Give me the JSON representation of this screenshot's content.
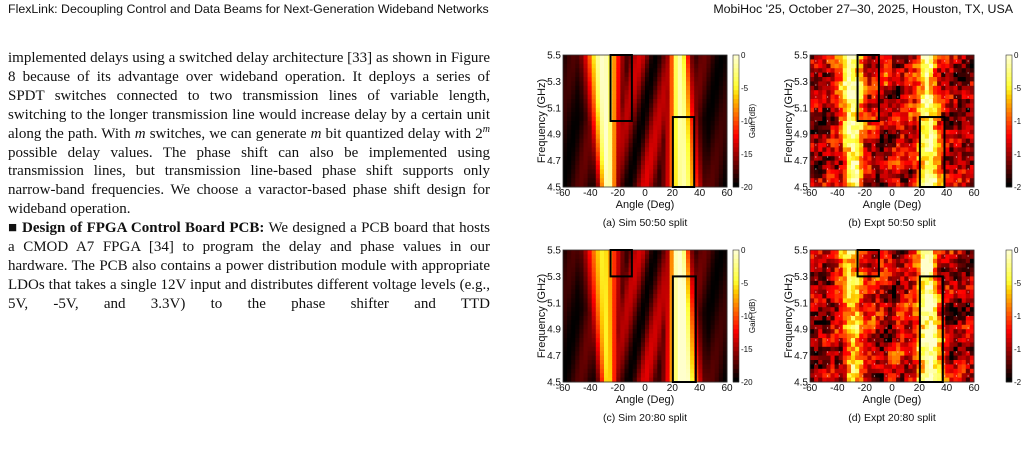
{
  "header": {
    "left": "FlexLink: Decoupling Control and Data Beams for Next-Generation Wideband Networks",
    "right": "MobiHoc '25, October 27–30, 2025, Houston, TX, USA"
  },
  "body": {
    "paragraph1": [
      "implemented delays using a switched delay architecture [33] as shown in Figure 8 because of its advantage over wideband operation. It deploys a series of SPDT switches connected to two transmission lines of variable length, switching to the longer transmission line would increase delay by a certain unit along the path. With ",
      "m",
      " switches, we can generate ",
      "m",
      " bit quantized delay with 2",
      "m",
      " possible delay values. The phase shift can also be implemented using transmission lines, but transmission line-based phase shift supports only narrow-band frequencies. We choose a varactor-based phase shift design for wideband operation."
    ],
    "paragraph2": {
      "marker": "■",
      "heading": "Design of FPGA Control Board PCB:",
      "text": "We designed a PCB board that hosts a CMOD A7 FPGA [34] to program the delay and phase values in our hardware. The PCB also contains a power distribution module with appropriate LDOs that takes a single 12V input and distributes different voltage levels (e.g., 5V, -5V, and 3.3V) to the phase shifter and TTD"
    }
  },
  "figure": {
    "x_label": "Angle (Deg)",
    "y_label": "Frequency (GHz)",
    "colorbar_label": "Gain (dB)",
    "x_ticks": [
      "-60",
      "-40",
      "-20",
      "0",
      "20",
      "40",
      "60"
    ],
    "y_ticks": [
      "5.5",
      "5.3",
      "5.1",
      "4.9",
      "4.7",
      "4.5"
    ],
    "colorbar_ticks": [
      "0",
      "-5",
      "-10",
      "-15",
      "-20"
    ],
    "panels": [
      {
        "caption": "(a) Sim 50:50 split"
      },
      {
        "caption": "(b) Expt 50:50 split"
      },
      {
        "caption": "(c) Sim 20:80 split"
      },
      {
        "caption": "(d) Expt 20:80 split"
      }
    ]
  }
}
